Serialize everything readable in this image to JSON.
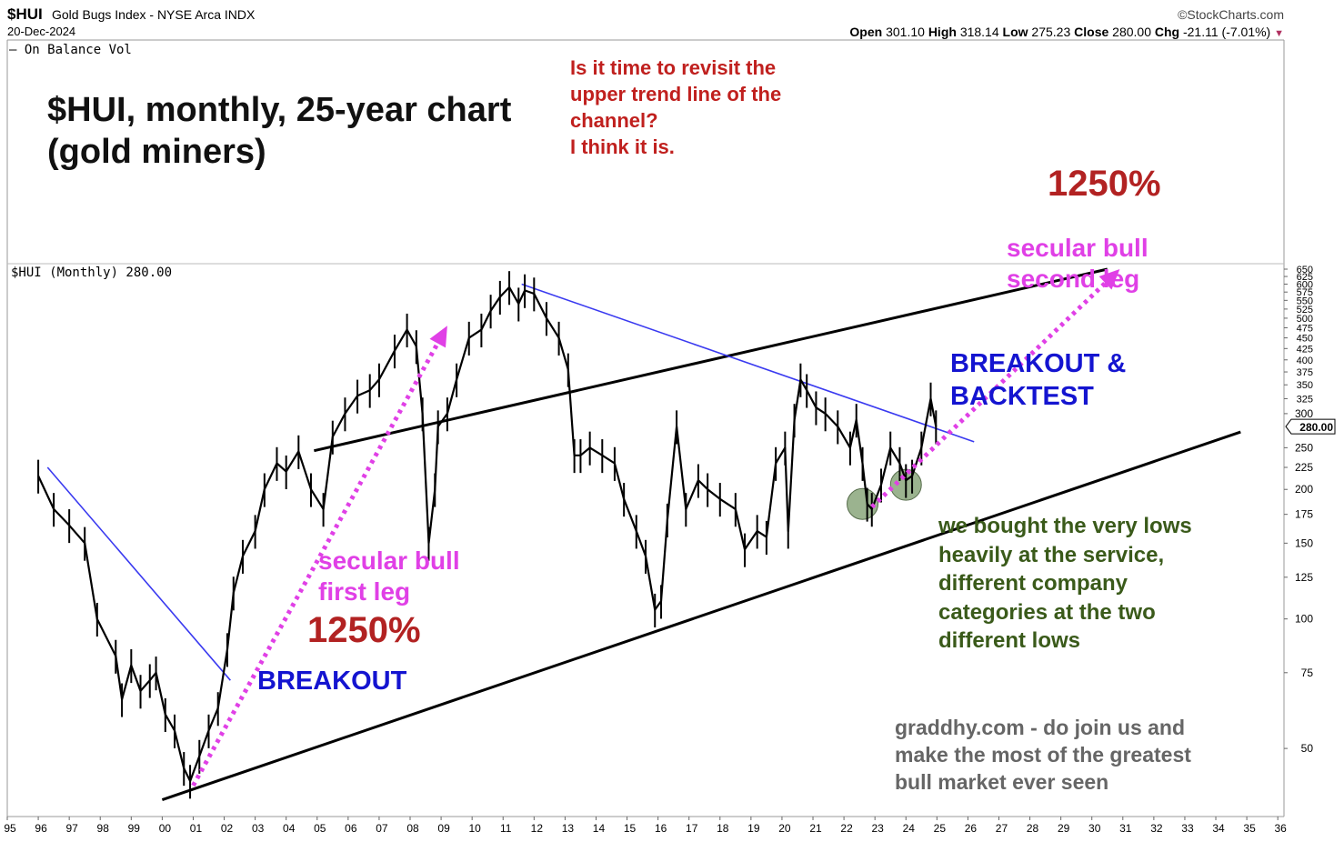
{
  "header": {
    "symbol": "$HUI",
    "description": "Gold Bugs Index - NYSE Arca INDX",
    "date": "20-Dec-2024",
    "credit": "©StockCharts.com",
    "open_label": "Open",
    "open": "301.10",
    "high_label": "High",
    "high": "318.14",
    "low_label": "Low",
    "low": "275.23",
    "close_label": "Close",
    "close": "280.00",
    "chg_label": "Chg",
    "chg": "-21.11 (-7.01%)",
    "chg_arrow": "▼",
    "indicator_legend": "— On Balance Vol",
    "price_legend": "$HUI (Monthly) 280.00",
    "last_price_tag": "280.00"
  },
  "annotations": {
    "title_lines": [
      "$HUI, monthly, 25-year chart",
      "(gold miners)"
    ],
    "question_lines": [
      "Is it time to revisit the",
      "upper trend line of the",
      "channel?",
      "I think it is."
    ],
    "pct_second": "1250%",
    "second_leg_lines": [
      "secular bull",
      "second leg"
    ],
    "breakout_backtest_lines": [
      "BREAKOUT &",
      "BACKTEST"
    ],
    "first_leg_lines": [
      "secular bull",
      "first leg"
    ],
    "pct_first": "1250%",
    "breakout": "BREAKOUT",
    "green_note_lines": [
      "we bought the very lows",
      "heavily at the service,",
      "different company",
      "categories at the two",
      "different lows"
    ],
    "promo_lines": [
      "graddhy.com - do join us and",
      "make the most of the greatest",
      "bull market ever seen"
    ]
  },
  "colors": {
    "price": "#000000",
    "channel": "#000000",
    "downtrend": "#3a3af0",
    "projection": "#e040e6",
    "low_marker": "#7a9a6a",
    "question": "#c0201e",
    "percent": "#b22222",
    "breakout": "#1414d0",
    "note": "#3a5a1a",
    "promo": "#666666"
  },
  "chart_data": {
    "type": "line",
    "title": "$HUI (Monthly) 280.00",
    "scale": "log",
    "ylim": [
      37,
      650
    ],
    "xlim": [
      1995,
      2036.2
    ],
    "x_ticks": [
      "95",
      "96",
      "97",
      "98",
      "99",
      "00",
      "01",
      "02",
      "03",
      "04",
      "05",
      "06",
      "07",
      "08",
      "09",
      "10",
      "11",
      "12",
      "13",
      "14",
      "15",
      "16",
      "17",
      "18",
      "19",
      "20",
      "21",
      "22",
      "23",
      "24",
      "25",
      "26",
      "27",
      "28",
      "29",
      "30",
      "31",
      "32",
      "33",
      "34",
      "35",
      "36"
    ],
    "y_ticks": [
      650,
      625,
      600,
      575,
      550,
      525,
      500,
      475,
      450,
      425,
      400,
      375,
      350,
      325,
      300,
      250,
      225,
      200,
      175,
      150,
      125,
      100,
      75,
      50
    ],
    "series": [
      {
        "x": [
          1996.0,
          1996.5,
          1997.0,
          1997.5,
          1997.9,
          1998.5,
          1998.7,
          1999.0,
          1999.3,
          1999.6,
          1999.8,
          2000.1,
          2000.4,
          2000.7,
          2000.9,
          2001.2,
          2001.5,
          2001.8,
          2002.1,
          2002.3,
          2002.6,
          2003.0,
          2003.3,
          2003.7,
          2004.0,
          2004.4,
          2004.8,
          2005.2,
          2005.5,
          2005.9,
          2006.3,
          2006.7,
          2007.0,
          2007.5,
          2007.9,
          2008.2,
          2008.4,
          2008.6,
          2008.8,
          2008.9,
          2009.2,
          2009.5,
          2009.9,
          2010.3,
          2010.6,
          2010.9,
          2011.2,
          2011.5,
          2011.7,
          2012.0,
          2012.4,
          2012.8,
          2013.1,
          2013.3,
          2013.5,
          2013.8,
          2014.2,
          2014.6,
          2014.9,
          2015.3,
          2015.6,
          2015.9,
          2016.1,
          2016.3,
          2016.6,
          2016.9,
          2017.3,
          2017.6,
          2018.0,
          2018.5,
          2018.8,
          2019.2,
          2019.5,
          2019.8,
          2020.1,
          2020.2,
          2020.4,
          2020.6,
          2020.8,
          2021.1,
          2021.4,
          2021.8,
          2022.2,
          2022.4,
          2022.6,
          2022.75,
          2022.9,
          2023.2,
          2023.5,
          2023.8,
          2024.0,
          2024.2,
          2024.5,
          2024.8,
          2024.97
        ],
        "values": [
          215,
          180,
          165,
          150,
          100,
          82,
          65,
          78,
          68,
          72,
          75,
          60,
          55,
          45,
          42,
          48,
          55,
          62,
          85,
          115,
          140,
          160,
          200,
          230,
          220,
          245,
          200,
          180,
          265,
          300,
          330,
          340,
          360,
          420,
          470,
          430,
          300,
          150,
          200,
          280,
          300,
          360,
          450,
          470,
          520,
          560,
          590,
          540,
          580,
          570,
          500,
          450,
          380,
          240,
          240,
          250,
          240,
          230,
          190,
          160,
          140,
          105,
          110,
          170,
          280,
          180,
          210,
          200,
          190,
          180,
          145,
          160,
          155,
          230,
          250,
          160,
          290,
          360,
          340,
          310,
          300,
          280,
          250,
          290,
          230,
          185,
          180,
          205,
          250,
          230,
          210,
          215,
          250,
          325,
          280
        ]
      }
    ],
    "overlays": {
      "channel_upper": {
        "x": [
          2004.9,
          2030.5
        ],
        "values": [
          246,
          650
        ]
      },
      "channel_lower": {
        "x": [
          2000.0,
          2034.8
        ],
        "values": [
          38,
          272
        ]
      },
      "downtrend_1": {
        "x": [
          1996.3,
          2002.2
        ],
        "values": [
          225,
          72
        ]
      },
      "downtrend_2": {
        "x": [
          2011.6,
          2026.2
        ],
        "values": [
          600,
          258
        ]
      },
      "projection_1": {
        "x": [
          2001.0,
          2009.2
        ],
        "values": [
          41,
          480
        ]
      },
      "projection_2": {
        "x": [
          2022.9,
          2030.9
        ],
        "values": [
          182,
          650
        ]
      },
      "low_markers": {
        "x": [
          2022.6,
          2024.0
        ],
        "values": [
          185,
          205
        ]
      }
    }
  }
}
